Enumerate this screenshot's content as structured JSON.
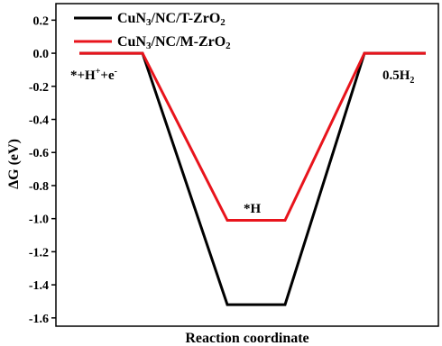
{
  "chart_data": {
    "type": "line",
    "title": "",
    "xlabel": "Reaction coordinate",
    "ylabel": "ΔG (eV)",
    "ylim": [
      -1.65,
      0.3
    ],
    "yticks": [
      "0.2",
      "0.0",
      "-0.2",
      "-0.4",
      "-0.6",
      "-0.8",
      "-1.0",
      "-1.2",
      "-1.4",
      "-1.6"
    ],
    "ytick_values": [
      0.2,
      0.0,
      -0.2,
      -0.4,
      -0.6,
      -0.8,
      -1.0,
      -1.2,
      -1.4,
      -1.6
    ],
    "grid": false,
    "legend_placement": "top-left",
    "states": [
      {
        "label_pre": "*+H",
        "label_sup1": "+",
        "label_mid": "+e",
        "label_sup2": "-"
      },
      {
        "label": "*H"
      },
      {
        "label_pre": "0.5H",
        "label_sub": "2"
      }
    ],
    "series": [
      {
        "name_pre": "CuN",
        "name_sub1": "3",
        "name_mid": "/NC/T-ZrO",
        "name_sub2": "2",
        "color": "#000000",
        "values": [
          0.0,
          -1.52,
          0.0
        ]
      },
      {
        "name_pre": "CuN",
        "name_sub1": "3",
        "name_mid": "/NC/M-ZrO",
        "name_sub2": "2",
        "color": "#e8141c",
        "values": [
          0.0,
          -1.01,
          0.0
        ]
      }
    ]
  }
}
